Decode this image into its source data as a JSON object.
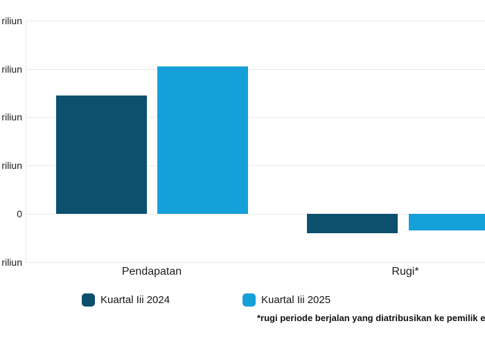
{
  "chart_data": {
    "type": "bar",
    "categories": [
      "Pendapatan",
      "Rugi*"
    ],
    "series": [
      {
        "name": "Kuartal Iii 2024",
        "color": "#0d506e",
        "values": [
          4.9,
          -0.8
        ]
      },
      {
        "name": "Kuartal Iii 2025",
        "color": "#16a0d9",
        "values": [
          6.1,
          -0.7
        ]
      }
    ],
    "unit_hint": "triliun",
    "ylim": [
      -2,
      8
    ],
    "y_ticks": [
      {
        "value": 8,
        "label": "riliun"
      },
      {
        "value": 6,
        "label": "riliun"
      },
      {
        "value": 4,
        "label": "riliun"
      },
      {
        "value": 2,
        "label": "riliun"
      },
      {
        "value": 0,
        "label": "0"
      },
      {
        "value": -2,
        "label": "riliun"
      }
    ],
    "grid": "horizontal",
    "legend_position": "bottom"
  },
  "footnote": {
    "text": "*rugi periode berjalan yang diatribusikan ke pemilik enti"
  },
  "colors": {
    "grid": "#eaeaea",
    "text": "#1a1a1a",
    "series_1": "#0d506e",
    "series_2": "#16a0d9"
  }
}
